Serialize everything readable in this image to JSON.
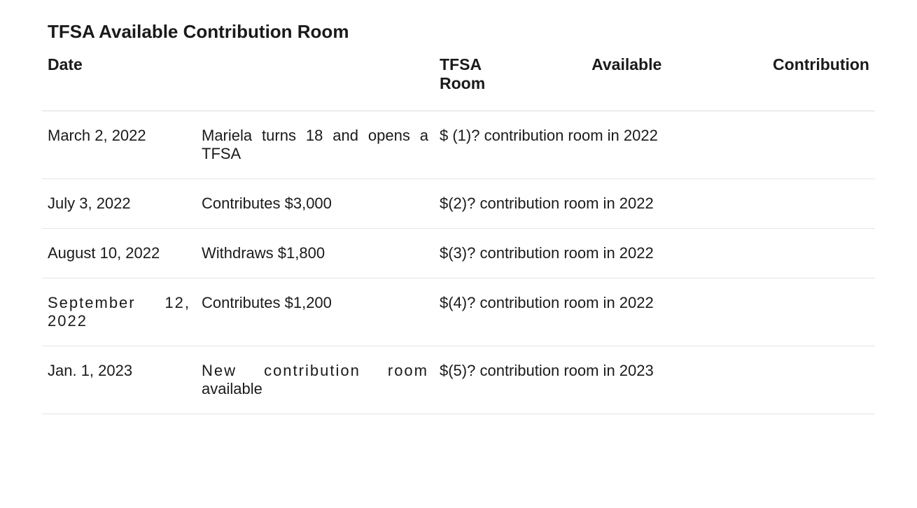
{
  "title": "TFSA Available Contribution Room",
  "headers": {
    "date": "Date",
    "room_line1": "TFSA  Available  Contribution",
    "room_line2": "Room"
  },
  "rows": [
    {
      "date": "March 2, 2022",
      "desc_line1": "Mariela turns 18 and opens a",
      "desc_line2": "TFSA",
      "room": "$ (1)? contribution room in 2022"
    },
    {
      "date": "July 3, 2022",
      "desc_line1": "Contributes $3,000",
      "desc_line2": "",
      "room": "$(2)? contribution room in 2022"
    },
    {
      "date": "August 10, 2022",
      "desc_line1": "Withdraws $1,800",
      "desc_line2": "",
      "room": "$(3)?  contribution room in 2022"
    },
    {
      "date": "September 12, 2022",
      "desc_line1": "Contributes $1,200",
      "desc_line2": "",
      "room": "$(4)?  contribution room in 2022"
    },
    {
      "date": "Jan. 1, 2023",
      "desc_line1": "New contribution room",
      "desc_line2": "available",
      "room": "$(5)?  contribution room in 2023"
    }
  ]
}
